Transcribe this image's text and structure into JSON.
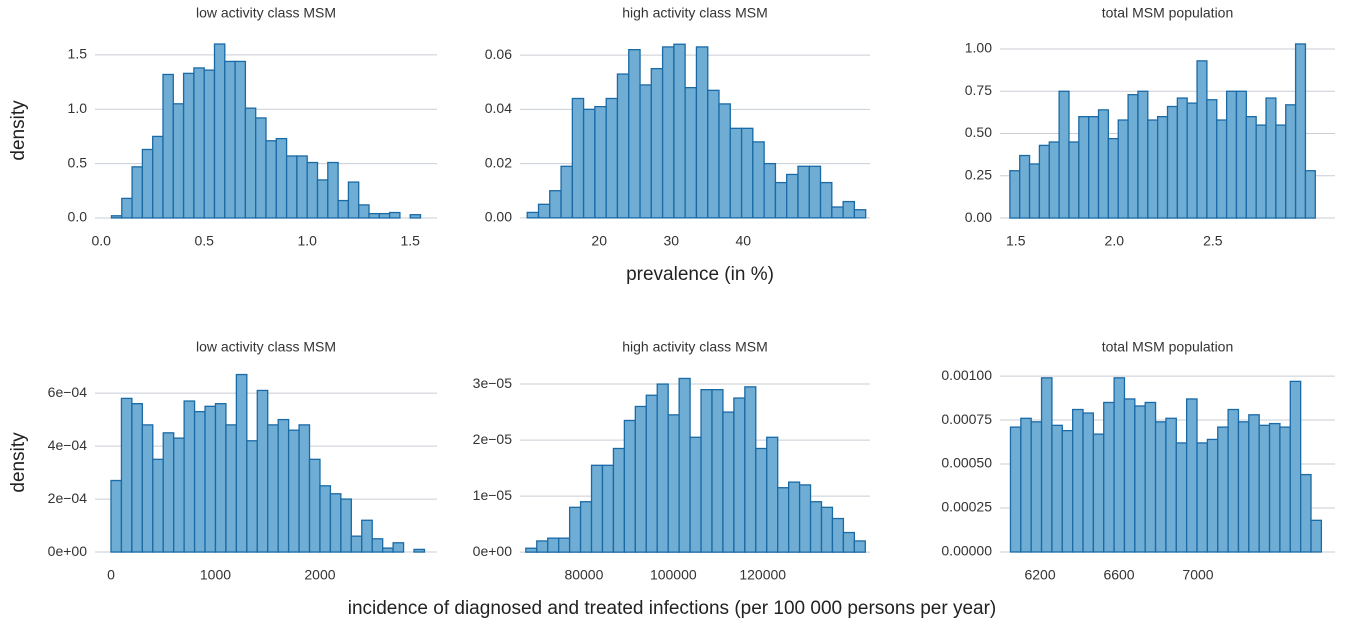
{
  "chart_data": [
    {
      "type": "histogram",
      "title": "low activity class MSM",
      "ylabel": "density",
      "color": "#6fadd4",
      "edgecolor": "#1a6aa6",
      "grid": true,
      "bins": [
        0.05,
        0.1,
        0.15,
        0.2,
        0.25,
        0.3,
        0.35,
        0.4,
        0.45,
        0.5,
        0.55,
        0.6,
        0.65,
        0.7,
        0.75,
        0.8,
        0.85,
        0.9,
        0.95,
        1.0,
        1.05,
        1.1,
        1.15,
        1.2,
        1.25,
        1.3,
        1.35,
        1.4,
        1.45,
        1.5,
        1.55
      ],
      "values": [
        0.02,
        0.18,
        0.47,
        0.63,
        0.75,
        1.32,
        1.05,
        1.33,
        1.38,
        1.36,
        1.6,
        1.44,
        1.44,
        1.01,
        0.92,
        0.71,
        0.73,
        0.57,
        0.57,
        0.51,
        0.35,
        0.51,
        0.16,
        0.33,
        0.12,
        0.04,
        0.04,
        0.05,
        0,
        0.03
      ],
      "xlim": [
        -0.03,
        1.63
      ],
      "ylim": [
        -0.074,
        1.683
      ],
      "xticks": [
        {
          "value": 0,
          "label": "0.0"
        },
        0.5,
        {
          "value": 1,
          "label": "1.0"
        },
        1.5
      ],
      "yticks": [
        {
          "value": 0,
          "label": "0.0"
        },
        0.5,
        {
          "value": 1,
          "label": "1.0"
        },
        1.5
      ]
    },
    {
      "type": "histogram",
      "title": "high activity class MSM",
      "xlabel": "prevalence (in %)",
      "color": "#6fadd4",
      "edgecolor": "#1a6aa6",
      "grid": true,
      "bins": [
        10,
        11.57,
        13.13,
        14.7,
        16.27,
        17.83,
        19.4,
        20.97,
        22.53,
        24.1,
        25.67,
        27.23,
        28.8,
        30.37,
        31.93,
        33.5,
        35.07,
        36.63,
        38.2,
        39.77,
        41.33,
        42.9,
        44.47,
        46.03,
        47.6,
        49.17,
        50.73,
        52.3,
        53.87,
        55.43,
        57
      ],
      "values": [
        0.002,
        0.005,
        0.01,
        0.019,
        0.044,
        0.04,
        0.041,
        0.044,
        0.053,
        0.062,
        0.049,
        0.055,
        0.063,
        0.064,
        0.048,
        0.063,
        0.047,
        0.042,
        0.033,
        0.033,
        0.028,
        0.02,
        0.013,
        0.016,
        0.019,
        0.019,
        0.013,
        0.004,
        0.006,
        0.003
      ],
      "xlim": [
        9,
        57.6
      ],
      "ylim": [
        -0.003,
        0.0674
      ],
      "xticks": [
        20,
        30,
        40
      ],
      "yticks": [
        {
          "value": 0,
          "label": "0.00"
        },
        {
          "value": 0.02,
          "label": "0.02"
        },
        {
          "value": 0.04,
          "label": "0.04"
        },
        {
          "value": 0.06,
          "label": "0.06"
        }
      ]
    },
    {
      "type": "histogram",
      "title": "total MSM population",
      "color": "#6fadd4",
      "edgecolor": "#1a6aa6",
      "grid": true,
      "bins": [
        1.47,
        1.52,
        1.57,
        1.62,
        1.67,
        1.72,
        1.77,
        1.82,
        1.87,
        1.92,
        1.97,
        2.02,
        2.07,
        2.12,
        2.17,
        2.22,
        2.27,
        2.32,
        2.37,
        2.42,
        2.47,
        2.52,
        2.57,
        2.62,
        2.67,
        2.72,
        2.77,
        2.82,
        2.87,
        2.92,
        2.97,
        3.02
      ],
      "values": [
        0.28,
        0.37,
        0.32,
        0.43,
        0.45,
        0.75,
        0.45,
        0.6,
        0.6,
        0.64,
        0.47,
        0.58,
        0.73,
        0.75,
        0.58,
        0.6,
        0.66,
        0.71,
        0.68,
        0.93,
        0.7,
        0.58,
        0.75,
        0.75,
        0.6,
        0.55,
        0.71,
        0.55,
        0.67,
        1.03,
        0.28
      ],
      "xlim": [
        1.42,
        3.12
      ],
      "ylim": [
        -0.047,
        1.083
      ],
      "xticks": [
        1.5,
        {
          "value": 2,
          "label": "2.0"
        },
        2.5
      ],
      "yticks": [
        {
          "value": 0,
          "label": "0.00"
        },
        0.25,
        {
          "value": 0.5,
          "label": "0.50"
        },
        0.75,
        {
          "value": 1,
          "label": "1.00"
        }
      ]
    },
    {
      "type": "histogram",
      "title": "low activity class MSM",
      "ylabel": "density",
      "color": "#6fadd4",
      "edgecolor": "#1a6aa6",
      "grid": true,
      "bins": [
        0,
        100,
        200,
        300,
        400,
        500,
        600,
        700,
        800,
        900,
        1000,
        1100,
        1200,
        1300,
        1400,
        1500,
        1600,
        1700,
        1800,
        1900,
        2000,
        2100,
        2200,
        2300,
        2400,
        2500,
        2600,
        2700,
        2800,
        2900,
        3000
      ],
      "values": [
        0.00027,
        0.00058,
        0.00056,
        0.00048,
        0.00035,
        0.00045,
        0.00043,
        0.00057,
        0.00053,
        0.00055,
        0.00056,
        0.00048,
        0.00067,
        0.00042,
        0.00061,
        0.00048,
        0.0005,
        0.00046,
        0.00048,
        0.00035,
        0.00025,
        0.00022,
        0.0002,
        6e-05,
        0.00012,
        5e-05,
        1.5e-05,
        3.5e-05,
        0,
        1e-05
      ],
      "xlim": [
        -153,
        3120
      ],
      "ylim": [
        -3e-05,
        0.000706
      ],
      "xticks": [
        0,
        1000,
        2000
      ],
      "yticks": [
        {
          "value": 0,
          "label": "0e+00"
        },
        {
          "value": 0.0002,
          "label": "2e−04"
        },
        {
          "value": 0.0004,
          "label": "4e−04"
        },
        {
          "value": 0.0006,
          "label": "6e−04"
        }
      ]
    },
    {
      "type": "histogram",
      "title": "high activity class MSM",
      "xlabel": "incidence of diagnosed and treated infections (per 100 000 persons per year)",
      "color": "#6fadd4",
      "edgecolor": "#1a6aa6",
      "grid": true,
      "bins": [
        67000,
        69450,
        71900,
        74350,
        76800,
        79250,
        81700,
        84150,
        86600,
        89050,
        91500,
        93950,
        96400,
        98850,
        101300,
        103750,
        106200,
        108650,
        111100,
        113550,
        116000,
        118450,
        120900,
        123350,
        125800,
        128250,
        130700,
        133150,
        135600,
        138050,
        140500,
        142950
      ],
      "values": [
        7e-07,
        2e-06,
        2.5e-06,
        2.5e-06,
        8e-06,
        9e-06,
        1.55e-05,
        1.55e-05,
        1.85e-05,
        2.35e-05,
        2.6e-05,
        2.8e-05,
        3e-05,
        2.45e-05,
        3.1e-05,
        2.05e-05,
        2.9e-05,
        2.9e-05,
        2.5e-05,
        2.75e-05,
        2.95e-05,
        1.85e-05,
        2.05e-05,
        1.15e-05,
        1.25e-05,
        1.2e-05,
        9e-06,
        8e-06,
        6e-06,
        3.5e-06,
        2e-06
      ],
      "xlim": [
        65700,
        144000
      ],
      "ylim": [
        -1.4e-06,
        3.34e-05
      ],
      "xticks": [
        80000,
        100000,
        120000
      ],
      "yticks": [
        {
          "value": 0,
          "label": "0e+00"
        },
        {
          "value": 1e-05,
          "label": "1e−05"
        },
        {
          "value": 2e-05,
          "label": "2e−05"
        },
        {
          "value": 3e-05,
          "label": "3e−05"
        }
      ]
    },
    {
      "type": "histogram",
      "title": "total MSM population",
      "color": "#6fadd4",
      "edgecolor": "#1a6aa6",
      "grid": true,
      "bins": [
        6050,
        6102.5,
        6155,
        6207.5,
        6260,
        6312.5,
        6365,
        6417.5,
        6470,
        6522.5,
        6575,
        6627.5,
        6680,
        6732.5,
        6785,
        6837.5,
        6890,
        6942.5,
        6995,
        7047.5,
        7100,
        7152.5,
        7205,
        7257.5,
        7310,
        7362.5,
        7415,
        7467.5,
        7520,
        7572.5,
        7625
      ],
      "values": [
        0.00071,
        0.00076,
        0.00074,
        0.00099,
        0.00072,
        0.00069,
        0.00081,
        0.00079,
        0.00067,
        0.00085,
        0.00099,
        0.00087,
        0.00083,
        0.00085,
        0.00074,
        0.00076,
        0.00062,
        0.00087,
        0.00062,
        0.00064,
        0.00071,
        0.00081,
        0.00074,
        0.00078,
        0.00072,
        0.00073,
        0.00071,
        0.00097,
        0.00044,
        0.00018
      ],
      "xlim": [
        5997,
        7694
      ],
      "ylim": [
        -4.55e-05,
        0.001063
      ],
      "xticks": [
        6200,
        6600,
        7000
      ],
      "yticks": [
        {
          "value": 0,
          "label": "0.00000"
        },
        {
          "value": 0.00025,
          "label": "0.00025"
        },
        {
          "value": 0.0005,
          "label": "0.00050"
        },
        {
          "value": 0.00075,
          "label": "0.00075"
        },
        {
          "value": 0.001,
          "label": "0.00100"
        }
      ]
    }
  ]
}
